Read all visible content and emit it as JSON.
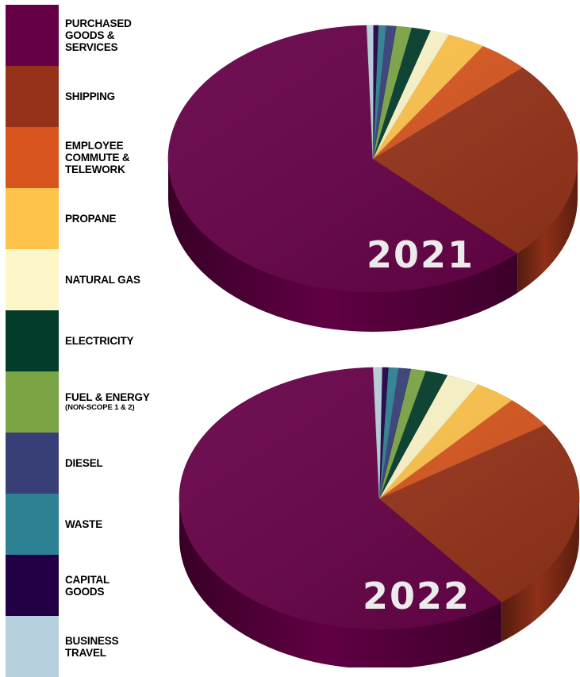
{
  "legend": [
    {
      "lines": [
        "PURCHASED",
        "GOODS &",
        "SERVICES"
      ],
      "color": "#650046"
    },
    {
      "lines": [
        "SHIPPING"
      ],
      "color": "#963219"
    },
    {
      "lines": [
        "EMPLOYEE",
        "COMMUTE &",
        "TELEWORK"
      ],
      "color": "#d8561e"
    },
    {
      "lines": [
        "PROPANE"
      ],
      "color": "#fec34a"
    },
    {
      "lines": [
        "NATURAL GAS"
      ],
      "color": "#fdf6c9"
    },
    {
      "lines": [
        "ELECTRICITY"
      ],
      "color": "#033c2b"
    },
    {
      "lines": [
        "FUEL & ENERGY"
      ],
      "sub": "(NON-SCOPE 1 & 2)",
      "color": "#7ba545"
    },
    {
      "lines": [
        "DIESEL"
      ],
      "color": "#383f77"
    },
    {
      "lines": [
        "WASTE"
      ],
      "color": "#2d8193"
    },
    {
      "lines": [
        "CAPITAL",
        "GOODS"
      ],
      "color": "#230045"
    },
    {
      "lines": [
        "BUSINESS",
        "TRAVEL"
      ],
      "color": "#b7d0dd"
    }
  ],
  "chart_data": [
    {
      "type": "pie",
      "title": "2021",
      "categories": [
        "PURCHASED GOODS & SERVICES",
        "SHIPPING",
        "EMPLOYEE COMMUTE & TELEWORK",
        "PROPANE",
        "NATURAL GAS",
        "ELECTRICITY",
        "FUEL & ENERGY (NON-SCOPE 1 & 2)",
        "DIESEL",
        "WASTE",
        "CAPITAL GOODS",
        "BUSINESS TRAVEL"
      ],
      "values": [
        62.0,
        24.5,
        4.0,
        3.0,
        1.5,
        1.5,
        1.2,
        0.8,
        0.6,
        0.4,
        0.5
      ]
    },
    {
      "type": "pie",
      "title": "2022",
      "categories": [
        "PURCHASED GOODS & SERVICES",
        "SHIPPING",
        "EMPLOYEE COMMUTE & TELEWORK",
        "PROPANE",
        "NATURAL GAS",
        "ELECTRICITY",
        "FUEL & ENERGY (NON-SCOPE 1 & 2)",
        "DIESEL",
        "WASTE",
        "CAPITAL GOODS",
        "BUSINESS TRAVEL"
      ],
      "values": [
        60.0,
        24.0,
        4.0,
        3.3,
        2.7,
        1.8,
        1.2,
        1.0,
        0.8,
        0.5,
        0.7
      ]
    }
  ]
}
